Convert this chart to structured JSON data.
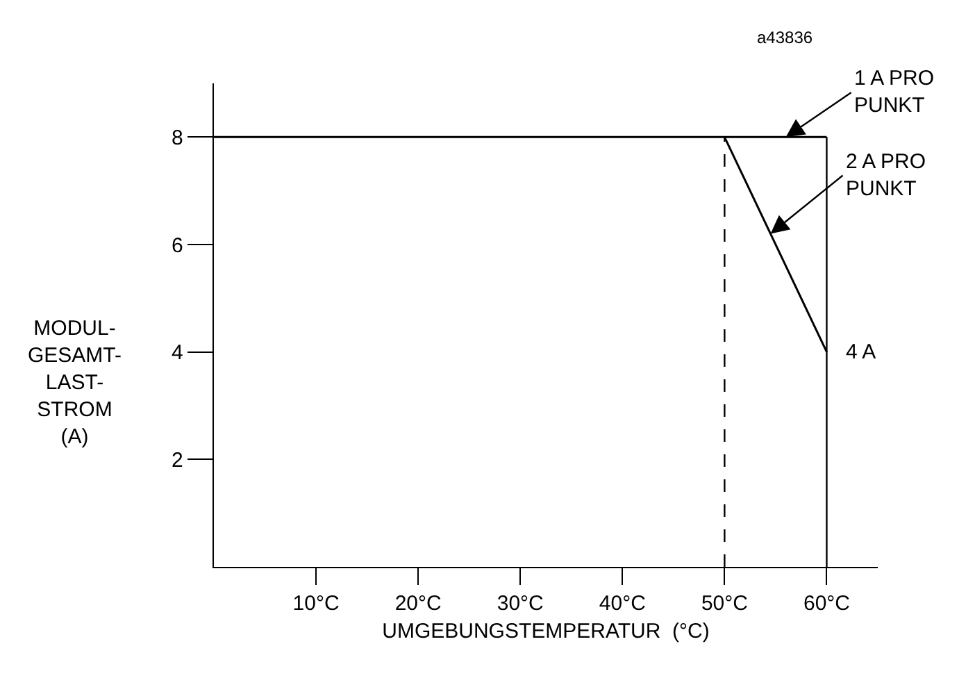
{
  "chart_data": {
    "type": "line",
    "xlabel": "UMGEBUNGSTEMPERATUR  (°C)",
    "ylabel": "MODUL-\nGESAMT-\nLAST-\nSTROM\n(A)",
    "xlim": [
      0,
      65
    ],
    "ylim": [
      0,
      9
    ],
    "xticks": [
      {
        "value": 10,
        "label": "10°C"
      },
      {
        "value": 20,
        "label": "20°C"
      },
      {
        "value": 30,
        "label": "30°C"
      },
      {
        "value": 40,
        "label": "40°C"
      },
      {
        "value": 50,
        "label": "50°C"
      },
      {
        "value": 60,
        "label": "60°C"
      }
    ],
    "yticks": [
      2,
      4,
      6,
      8
    ],
    "series": [
      {
        "color": "#000000",
        "x": [
          0,
          60
        ],
        "values": [
          8,
          8
        ]
      },
      {
        "color": "#000000",
        "x": [
          50,
          60
        ],
        "values": [
          8,
          4
        ]
      }
    ],
    "ref_lines": [
      {
        "axis": "x",
        "value": 50,
        "label": null,
        "color": "#000000",
        "line_style": "dashed"
      },
      {
        "axis": "x",
        "value": 60,
        "label": null,
        "color": "#000000",
        "line_style": "solid"
      }
    ],
    "annotations": [
      {
        "text": "1 A PRO\nPUNKT",
        "x": 56,
        "y": 8
      },
      {
        "text": "2 A PRO\nPUNKT",
        "x": 54.5,
        "y": 6.2
      },
      {
        "text": "4 A",
        "x": 60,
        "y": 4
      },
      "a43836"
    ],
    "marker": "none",
    "line_style": "solid"
  }
}
